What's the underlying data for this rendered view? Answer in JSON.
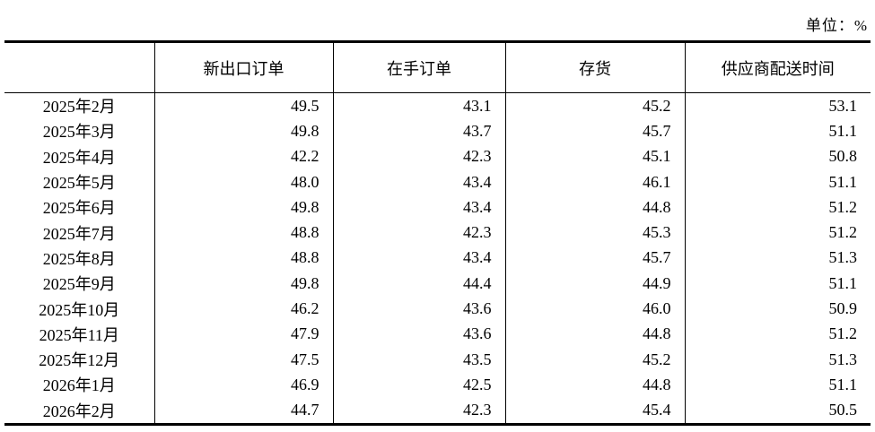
{
  "unit_label": "单位：%",
  "colors": {
    "background": "#ffffff",
    "text": "#000000",
    "rule": "#000000"
  },
  "table": {
    "headers": [
      "",
      "新出口订单",
      "在手订单",
      "存货",
      "供应商配送时间"
    ],
    "rows": [
      {
        "period": "2025年2月",
        "values": [
          "49.5",
          "43.1",
          "45.2",
          "53.1"
        ]
      },
      {
        "period": "2025年3月",
        "values": [
          "49.8",
          "43.7",
          "45.7",
          "51.1"
        ]
      },
      {
        "period": "2025年4月",
        "values": [
          "42.2",
          "42.3",
          "45.1",
          "50.8"
        ]
      },
      {
        "period": "2025年5月",
        "values": [
          "48.0",
          "43.4",
          "46.1",
          "51.1"
        ]
      },
      {
        "period": "2025年6月",
        "values": [
          "49.8",
          "43.4",
          "44.8",
          "51.2"
        ]
      },
      {
        "period": "2025年7月",
        "values": [
          "48.8",
          "42.3",
          "45.3",
          "51.2"
        ]
      },
      {
        "period": "2025年8月",
        "values": [
          "48.8",
          "43.4",
          "45.7",
          "51.3"
        ]
      },
      {
        "period": "2025年9月",
        "values": [
          "49.8",
          "44.4",
          "44.9",
          "51.1"
        ]
      },
      {
        "period": "2025年10月",
        "values": [
          "46.2",
          "43.6",
          "46.0",
          "50.9"
        ]
      },
      {
        "period": "2025年11月",
        "values": [
          "47.9",
          "43.6",
          "44.8",
          "51.2"
        ]
      },
      {
        "period": "2025年12月",
        "values": [
          "47.5",
          "43.5",
          "45.2",
          "51.3"
        ]
      },
      {
        "period": "2026年1月",
        "values": [
          "46.9",
          "42.5",
          "44.8",
          "51.1"
        ]
      },
      {
        "period": "2026年2月",
        "values": [
          "44.7",
          "42.3",
          "45.4",
          "50.5"
        ]
      }
    ]
  },
  "chart_data": {
    "type": "table",
    "title": "",
    "unit": "单位：%",
    "categories": [
      "2025年2月",
      "2025年3月",
      "2025年4月",
      "2025年5月",
      "2025年6月",
      "2025年7月",
      "2025年8月",
      "2025年9月",
      "2025年10月",
      "2025年11月",
      "2025年12月",
      "2026年1月",
      "2026年2月"
    ],
    "series": [
      {
        "name": "新出口订单",
        "values": [
          49.5,
          49.8,
          42.2,
          48.0,
          49.8,
          48.8,
          48.8,
          49.8,
          46.2,
          47.9,
          47.5,
          46.9,
          44.7
        ]
      },
      {
        "name": "在手订单",
        "values": [
          43.1,
          43.7,
          42.3,
          43.4,
          43.4,
          42.3,
          43.4,
          44.4,
          43.6,
          43.6,
          43.5,
          42.5,
          42.3
        ]
      },
      {
        "name": "存货",
        "values": [
          45.2,
          45.7,
          45.1,
          46.1,
          44.8,
          45.3,
          45.7,
          44.9,
          46.0,
          44.8,
          45.2,
          44.8,
          45.4
        ]
      },
      {
        "name": "供应商配送时间",
        "values": [
          53.1,
          51.1,
          50.8,
          51.1,
          51.2,
          51.2,
          51.3,
          51.1,
          50.9,
          51.2,
          51.3,
          51.1,
          50.5
        ]
      }
    ]
  }
}
